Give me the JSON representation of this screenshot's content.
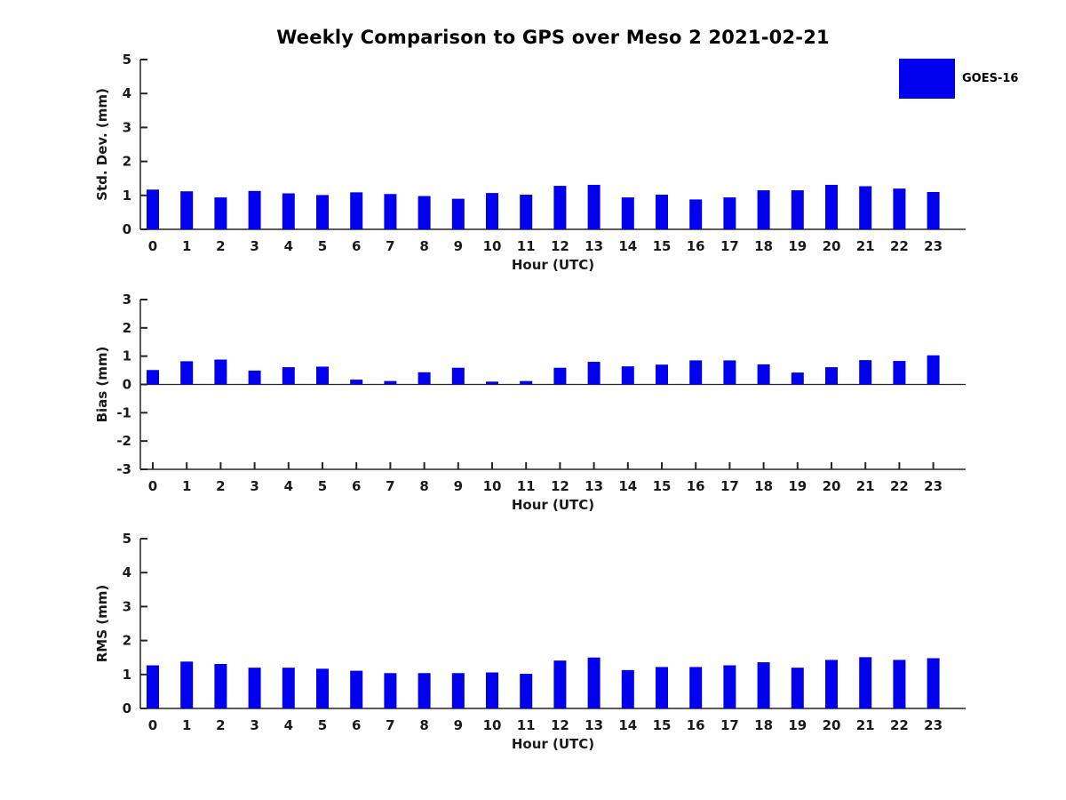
{
  "figure": {
    "title": "Weekly Comparison to GPS over Meso 2 2021-02-21",
    "legend": {
      "label": "GOES-16",
      "color": "#0000EE"
    }
  },
  "colors": {
    "bar": "#0000EE",
    "axis": "#262626",
    "text": "#1a1a1a",
    "background": "#ffffff"
  },
  "chart_data": [
    {
      "type": "bar",
      "id": "stddev",
      "ylabel": "Std. Dev. (mm)",
      "xlabel": "Hour (UTC)",
      "ylim": [
        0,
        5
      ],
      "yticks": [
        0,
        1,
        2,
        3,
        4,
        5
      ],
      "grid": false,
      "legend_position": "top-right",
      "categories": [
        "0",
        "1",
        "2",
        "3",
        "4",
        "5",
        "6",
        "7",
        "8",
        "9",
        "10",
        "11",
        "12",
        "13",
        "14",
        "15",
        "16",
        "17",
        "18",
        "19",
        "20",
        "21",
        "22",
        "23"
      ],
      "series": [
        {
          "name": "GOES-16",
          "values": [
            1.17,
            1.12,
            0.94,
            1.13,
            1.06,
            1.01,
            1.09,
            1.04,
            0.98,
            0.9,
            1.07,
            1.02,
            1.28,
            1.31,
            0.94,
            1.02,
            0.88,
            0.94,
            1.15,
            1.15,
            1.31,
            1.27,
            1.2,
            1.1
          ]
        }
      ]
    },
    {
      "type": "bar",
      "id": "bias",
      "ylabel": "Bias (mm)",
      "xlabel": "Hour (UTC)",
      "ylim": [
        -3,
        3
      ],
      "yticks": [
        -3,
        -2,
        -1,
        0,
        1,
        2,
        3
      ],
      "grid": false,
      "categories": [
        "0",
        "1",
        "2",
        "3",
        "4",
        "5",
        "6",
        "7",
        "8",
        "9",
        "10",
        "11",
        "12",
        "13",
        "14",
        "15",
        "16",
        "17",
        "18",
        "19",
        "20",
        "21",
        "22",
        "23"
      ],
      "series": [
        {
          "name": "GOES-16",
          "values": [
            0.51,
            0.82,
            0.88,
            0.49,
            0.61,
            0.63,
            0.17,
            0.12,
            0.43,
            0.59,
            0.1,
            0.12,
            0.59,
            0.8,
            0.64,
            0.7,
            0.85,
            0.85,
            0.71,
            0.42,
            0.61,
            0.86,
            0.83,
            1.03
          ]
        }
      ]
    },
    {
      "type": "bar",
      "id": "rms",
      "ylabel": "RMS (mm)",
      "xlabel": "Hour (UTC)",
      "ylim": [
        0,
        5
      ],
      "yticks": [
        0,
        1,
        2,
        3,
        4,
        5
      ],
      "grid": false,
      "categories": [
        "0",
        "1",
        "2",
        "3",
        "4",
        "5",
        "6",
        "7",
        "8",
        "9",
        "10",
        "11",
        "12",
        "13",
        "14",
        "15",
        "16",
        "17",
        "18",
        "19",
        "20",
        "21",
        "22",
        "23"
      ],
      "series": [
        {
          "name": "GOES-16",
          "values": [
            1.27,
            1.38,
            1.31,
            1.2,
            1.2,
            1.17,
            1.11,
            1.04,
            1.04,
            1.04,
            1.06,
            1.02,
            1.41,
            1.5,
            1.13,
            1.22,
            1.22,
            1.27,
            1.36,
            1.2,
            1.43,
            1.51,
            1.43,
            1.48
          ]
        }
      ]
    }
  ]
}
